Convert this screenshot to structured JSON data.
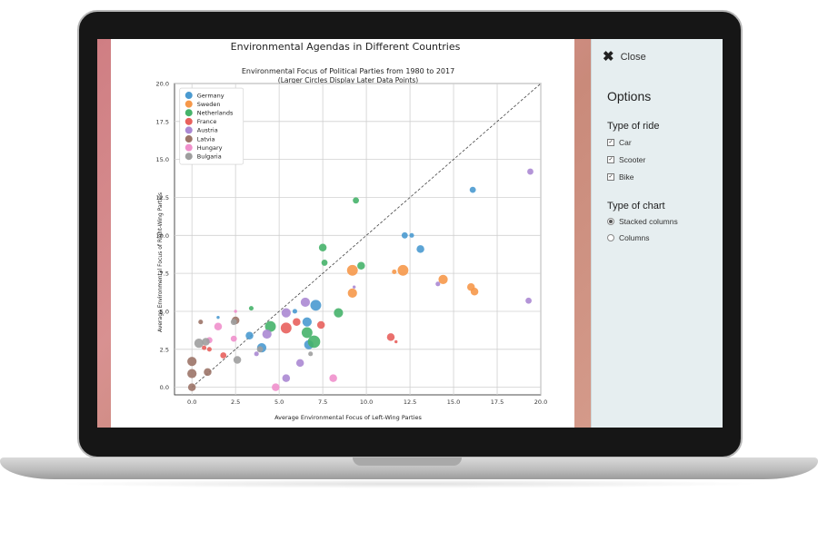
{
  "panel": {
    "close_label": "Close",
    "title": "Options",
    "ride_group_label": "Type of ride",
    "ride_options": [
      {
        "label": "Car",
        "checked": true
      },
      {
        "label": "Scooter",
        "checked": true
      },
      {
        "label": "Bike",
        "checked": true
      }
    ],
    "chart_group_label": "Type of chart",
    "chart_options": [
      {
        "label": "Stacked columns",
        "selected": true
      },
      {
        "label": "Columns",
        "selected": false
      }
    ]
  },
  "chart_data": {
    "type": "scatter",
    "title": "Environmental Agendas in Different Countries",
    "subtitle": "Environmental Focus of Political Parties from 1980 to 2017",
    "subtitle2": "(Larger Circles Display Later Data Points)",
    "xlabel": "Average Environmental Focus of Left-Wing Parties",
    "ylabel": "Average Environmental Focus of Right-Wing Parties",
    "xlim": [
      -1,
      20
    ],
    "ylim": [
      -0.5,
      20
    ],
    "xticks": [
      "0.0",
      "2.5",
      "5.0",
      "7.5",
      "10.0",
      "12.5",
      "15.0",
      "17.5",
      "20.0"
    ],
    "yticks": [
      "0.0",
      "2.5",
      "5.0",
      "7.5",
      "10.0",
      "12.5",
      "15.0",
      "17.5",
      "20.0"
    ],
    "grid": true,
    "legend_position": "top-left",
    "diagonal_reference": true,
    "series": [
      {
        "name": "Germany",
        "color": "#4a9ad0",
        "points": [
          {
            "x": 3.3,
            "y": 3.4,
            "s": 5
          },
          {
            "x": 4.0,
            "y": 2.6,
            "s": 6
          },
          {
            "x": 6.6,
            "y": 4.3,
            "s": 6
          },
          {
            "x": 7.1,
            "y": 5.4,
            "s": 7
          },
          {
            "x": 6.7,
            "y": 2.8,
            "s": 6
          },
          {
            "x": 12.2,
            "y": 10.0,
            "s": 4
          },
          {
            "x": 12.6,
            "y": 10.0,
            "s": 3
          },
          {
            "x": 13.1,
            "y": 9.1,
            "s": 5
          },
          {
            "x": 16.1,
            "y": 13.0,
            "s": 4
          },
          {
            "x": 1.5,
            "y": 4.6,
            "s": 2
          },
          {
            "x": 5.9,
            "y": 5.0,
            "s": 3
          }
        ]
      },
      {
        "name": "Sweden",
        "color": "#f6984a",
        "points": [
          {
            "x": 9.2,
            "y": 7.7,
            "s": 7
          },
          {
            "x": 9.2,
            "y": 6.2,
            "s": 6
          },
          {
            "x": 12.1,
            "y": 7.7,
            "s": 7
          },
          {
            "x": 11.6,
            "y": 7.6,
            "s": 3
          },
          {
            "x": 14.4,
            "y": 7.1,
            "s": 6
          },
          {
            "x": 16.0,
            "y": 6.6,
            "s": 5
          },
          {
            "x": 16.2,
            "y": 6.3,
            "s": 5
          }
        ]
      },
      {
        "name": "Netherlands",
        "color": "#46b36a",
        "points": [
          {
            "x": 4.5,
            "y": 4.0,
            "s": 7
          },
          {
            "x": 6.6,
            "y": 3.6,
            "s": 7
          },
          {
            "x": 7.0,
            "y": 3.0,
            "s": 8
          },
          {
            "x": 8.4,
            "y": 4.9,
            "s": 6
          },
          {
            "x": 7.5,
            "y": 9.2,
            "s": 5
          },
          {
            "x": 7.6,
            "y": 8.2,
            "s": 4
          },
          {
            "x": 9.7,
            "y": 8.0,
            "s": 5
          },
          {
            "x": 9.4,
            "y": 12.3,
            "s": 4
          },
          {
            "x": 3.4,
            "y": 5.2,
            "s": 3
          }
        ]
      },
      {
        "name": "France",
        "color": "#e8615d",
        "points": [
          {
            "x": 5.4,
            "y": 3.9,
            "s": 7
          },
          {
            "x": 6.0,
            "y": 4.3,
            "s": 5
          },
          {
            "x": 7.4,
            "y": 4.1,
            "s": 5
          },
          {
            "x": 11.4,
            "y": 3.3,
            "s": 5
          },
          {
            "x": 1.8,
            "y": 2.1,
            "s": 4
          },
          {
            "x": 0.7,
            "y": 2.6,
            "s": 3
          },
          {
            "x": 1.0,
            "y": 2.5,
            "s": 3
          },
          {
            "x": 11.7,
            "y": 3.0,
            "s": 2
          }
        ]
      },
      {
        "name": "Austria",
        "color": "#ab88d3",
        "points": [
          {
            "x": 4.3,
            "y": 3.5,
            "s": 6
          },
          {
            "x": 5.4,
            "y": 4.9,
            "s": 6
          },
          {
            "x": 6.5,
            "y": 5.6,
            "s": 6
          },
          {
            "x": 6.2,
            "y": 1.6,
            "s": 5
          },
          {
            "x": 5.4,
            "y": 0.6,
            "s": 5
          },
          {
            "x": 19.4,
            "y": 14.2,
            "s": 4
          },
          {
            "x": 19.3,
            "y": 5.7,
            "s": 4
          },
          {
            "x": 14.1,
            "y": 6.8,
            "s": 3
          },
          {
            "x": 9.3,
            "y": 6.6,
            "s": 2
          },
          {
            "x": 3.7,
            "y": 2.2,
            "s": 3
          }
        ]
      },
      {
        "name": "Latvia",
        "color": "#9c7468",
        "points": [
          {
            "x": 0.0,
            "y": 0.0,
            "s": 5
          },
          {
            "x": 0.0,
            "y": 0.9,
            "s": 6
          },
          {
            "x": 0.0,
            "y": 1.7,
            "s": 6
          },
          {
            "x": 0.9,
            "y": 1.0,
            "s": 5
          },
          {
            "x": 0.5,
            "y": 4.3,
            "s": 3
          },
          {
            "x": 2.5,
            "y": 4.4,
            "s": 5
          }
        ]
      },
      {
        "name": "Hungary",
        "color": "#f090cc",
        "points": [
          {
            "x": 1.5,
            "y": 4.0,
            "s": 5
          },
          {
            "x": 2.4,
            "y": 3.2,
            "s": 4
          },
          {
            "x": 4.8,
            "y": 0.0,
            "s": 5
          },
          {
            "x": 8.1,
            "y": 0.6,
            "s": 5
          },
          {
            "x": 1.0,
            "y": 3.1,
            "s": 4
          },
          {
            "x": 2.5,
            "y": 5.0,
            "s": 2
          }
        ]
      },
      {
        "name": "Bulgaria",
        "color": "#9e9e9e",
        "points": [
          {
            "x": 0.4,
            "y": 2.9,
            "s": 6
          },
          {
            "x": 0.8,
            "y": 3.0,
            "s": 5
          },
          {
            "x": 2.6,
            "y": 1.8,
            "s": 5
          },
          {
            "x": 3.9,
            "y": 2.5,
            "s": 4
          },
          {
            "x": 2.4,
            "y": 4.3,
            "s": 4
          },
          {
            "x": 6.8,
            "y": 2.2,
            "s": 3
          }
        ]
      }
    ]
  }
}
